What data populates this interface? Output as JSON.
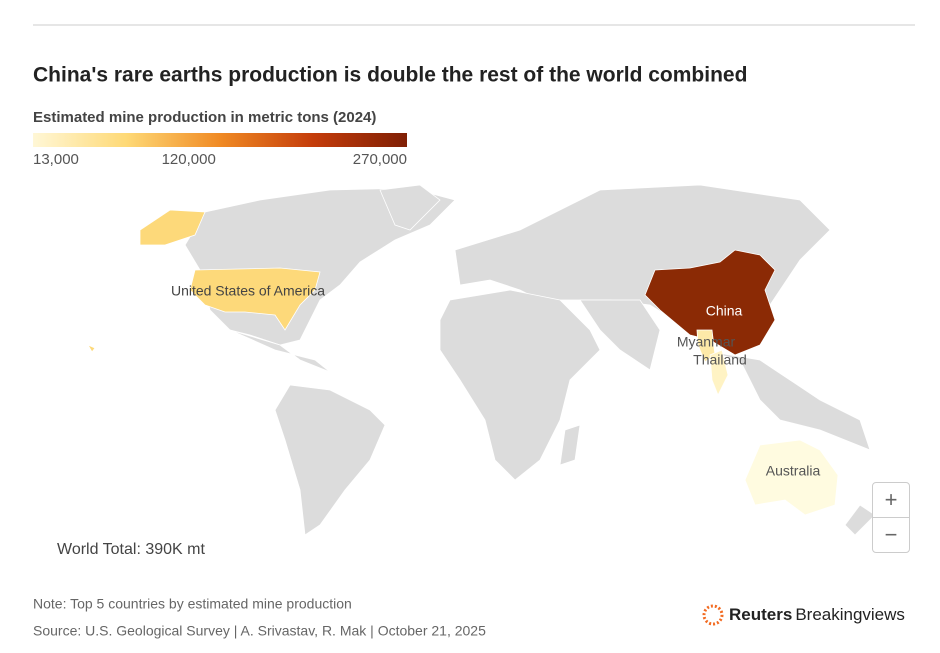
{
  "title": "China's rare earths production is double the rest of the world combined",
  "legend": {
    "title": "Estimated mine production in metric tons (2024)",
    "colors": [
      "#fff7d6",
      "#fed976",
      "#f08a24",
      "#c43c0a",
      "#7f1f05"
    ],
    "ticks": [
      {
        "value": 13000,
        "label": "13,000"
      },
      {
        "value": 120000,
        "label": "120,000"
      },
      {
        "value": 270000,
        "label": "270,000"
      }
    ]
  },
  "countries": [
    {
      "name": "United States of America",
      "color": "#fdd97a"
    },
    {
      "name": "China",
      "color": "#8b2a05"
    },
    {
      "name": "Myanmar",
      "color": "#fde9a8"
    },
    {
      "name": "Thailand",
      "color": "#fff3c4"
    },
    {
      "name": "Australia",
      "color": "#fffbe0"
    }
  ],
  "world_total": "World Total: 390K mt",
  "note": "Note: Top 5 countries by estimated mine production",
  "source": "Source: U.S. Geological Survey | A. Srivastav, R. Mak | October 21, 2025",
  "logo": {
    "brand": "Reuters",
    "product": "Breakingviews"
  },
  "zoom": {
    "in": "+",
    "out": "−"
  }
}
